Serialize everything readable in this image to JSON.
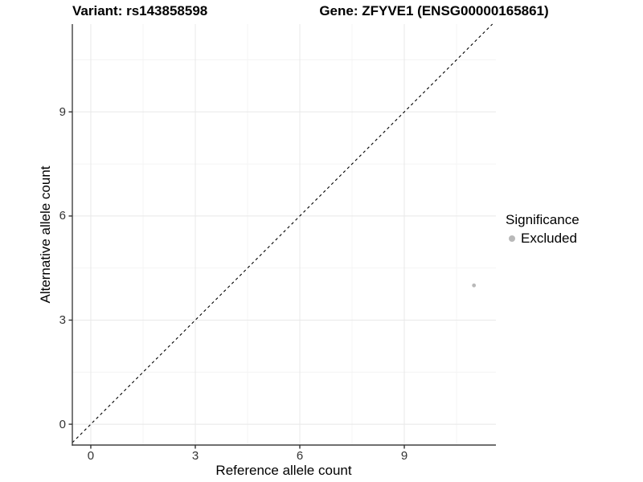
{
  "titles": {
    "variant": "Variant: rs143858598",
    "gene": "Gene: ZFYVE1 (ENSG00000165861)"
  },
  "axes": {
    "x": {
      "label": "Reference allele count",
      "tick_values": [
        0,
        3,
        6,
        9
      ],
      "tick_labels": [
        "0",
        "3",
        "6",
        "9"
      ],
      "minor_ticks": [
        1.5,
        4.5,
        7.5,
        10.5
      ]
    },
    "y": {
      "label": "Alternative allele count",
      "tick_values": [
        0,
        3,
        6,
        9
      ],
      "tick_labels": [
        "0",
        "3",
        "6",
        "9"
      ],
      "minor_ticks": [
        1.5,
        4.5,
        7.5,
        10.5
      ]
    }
  },
  "legend": {
    "title": "Significance",
    "items": [
      {
        "label": "Excluded",
        "color": "#b9b9b9"
      }
    ]
  },
  "chart_data": {
    "type": "scatter",
    "title_left": "Variant: rs143858598",
    "title_right": "Gene: ZFYVE1 (ENSG00000165861)",
    "xlabel": "Reference allele count",
    "ylabel": "Alternative allele count",
    "xlim": [
      -0.53,
      11.63
    ],
    "ylim": [
      -0.6,
      11.53
    ],
    "x_ticks": [
      0,
      3,
      6,
      9
    ],
    "y_ticks": [
      0,
      3,
      6,
      9
    ],
    "grid": true,
    "legend_position": "right",
    "series": [
      {
        "name": "Excluded",
        "color": "#b9b9b9",
        "points": [
          {
            "x": 11,
            "y": 4
          }
        ]
      }
    ],
    "reference_line": {
      "slope": 1,
      "intercept": 0,
      "style": "dashed",
      "color": "#000000"
    }
  },
  "colors": {
    "background": "#ffffff",
    "grid_major": "#e8e8e8",
    "grid_minor": "#f4f4f4",
    "axis_line": "#404040",
    "tick_mark": "#333333",
    "point": "#b9b9b9",
    "text": "#000000"
  }
}
